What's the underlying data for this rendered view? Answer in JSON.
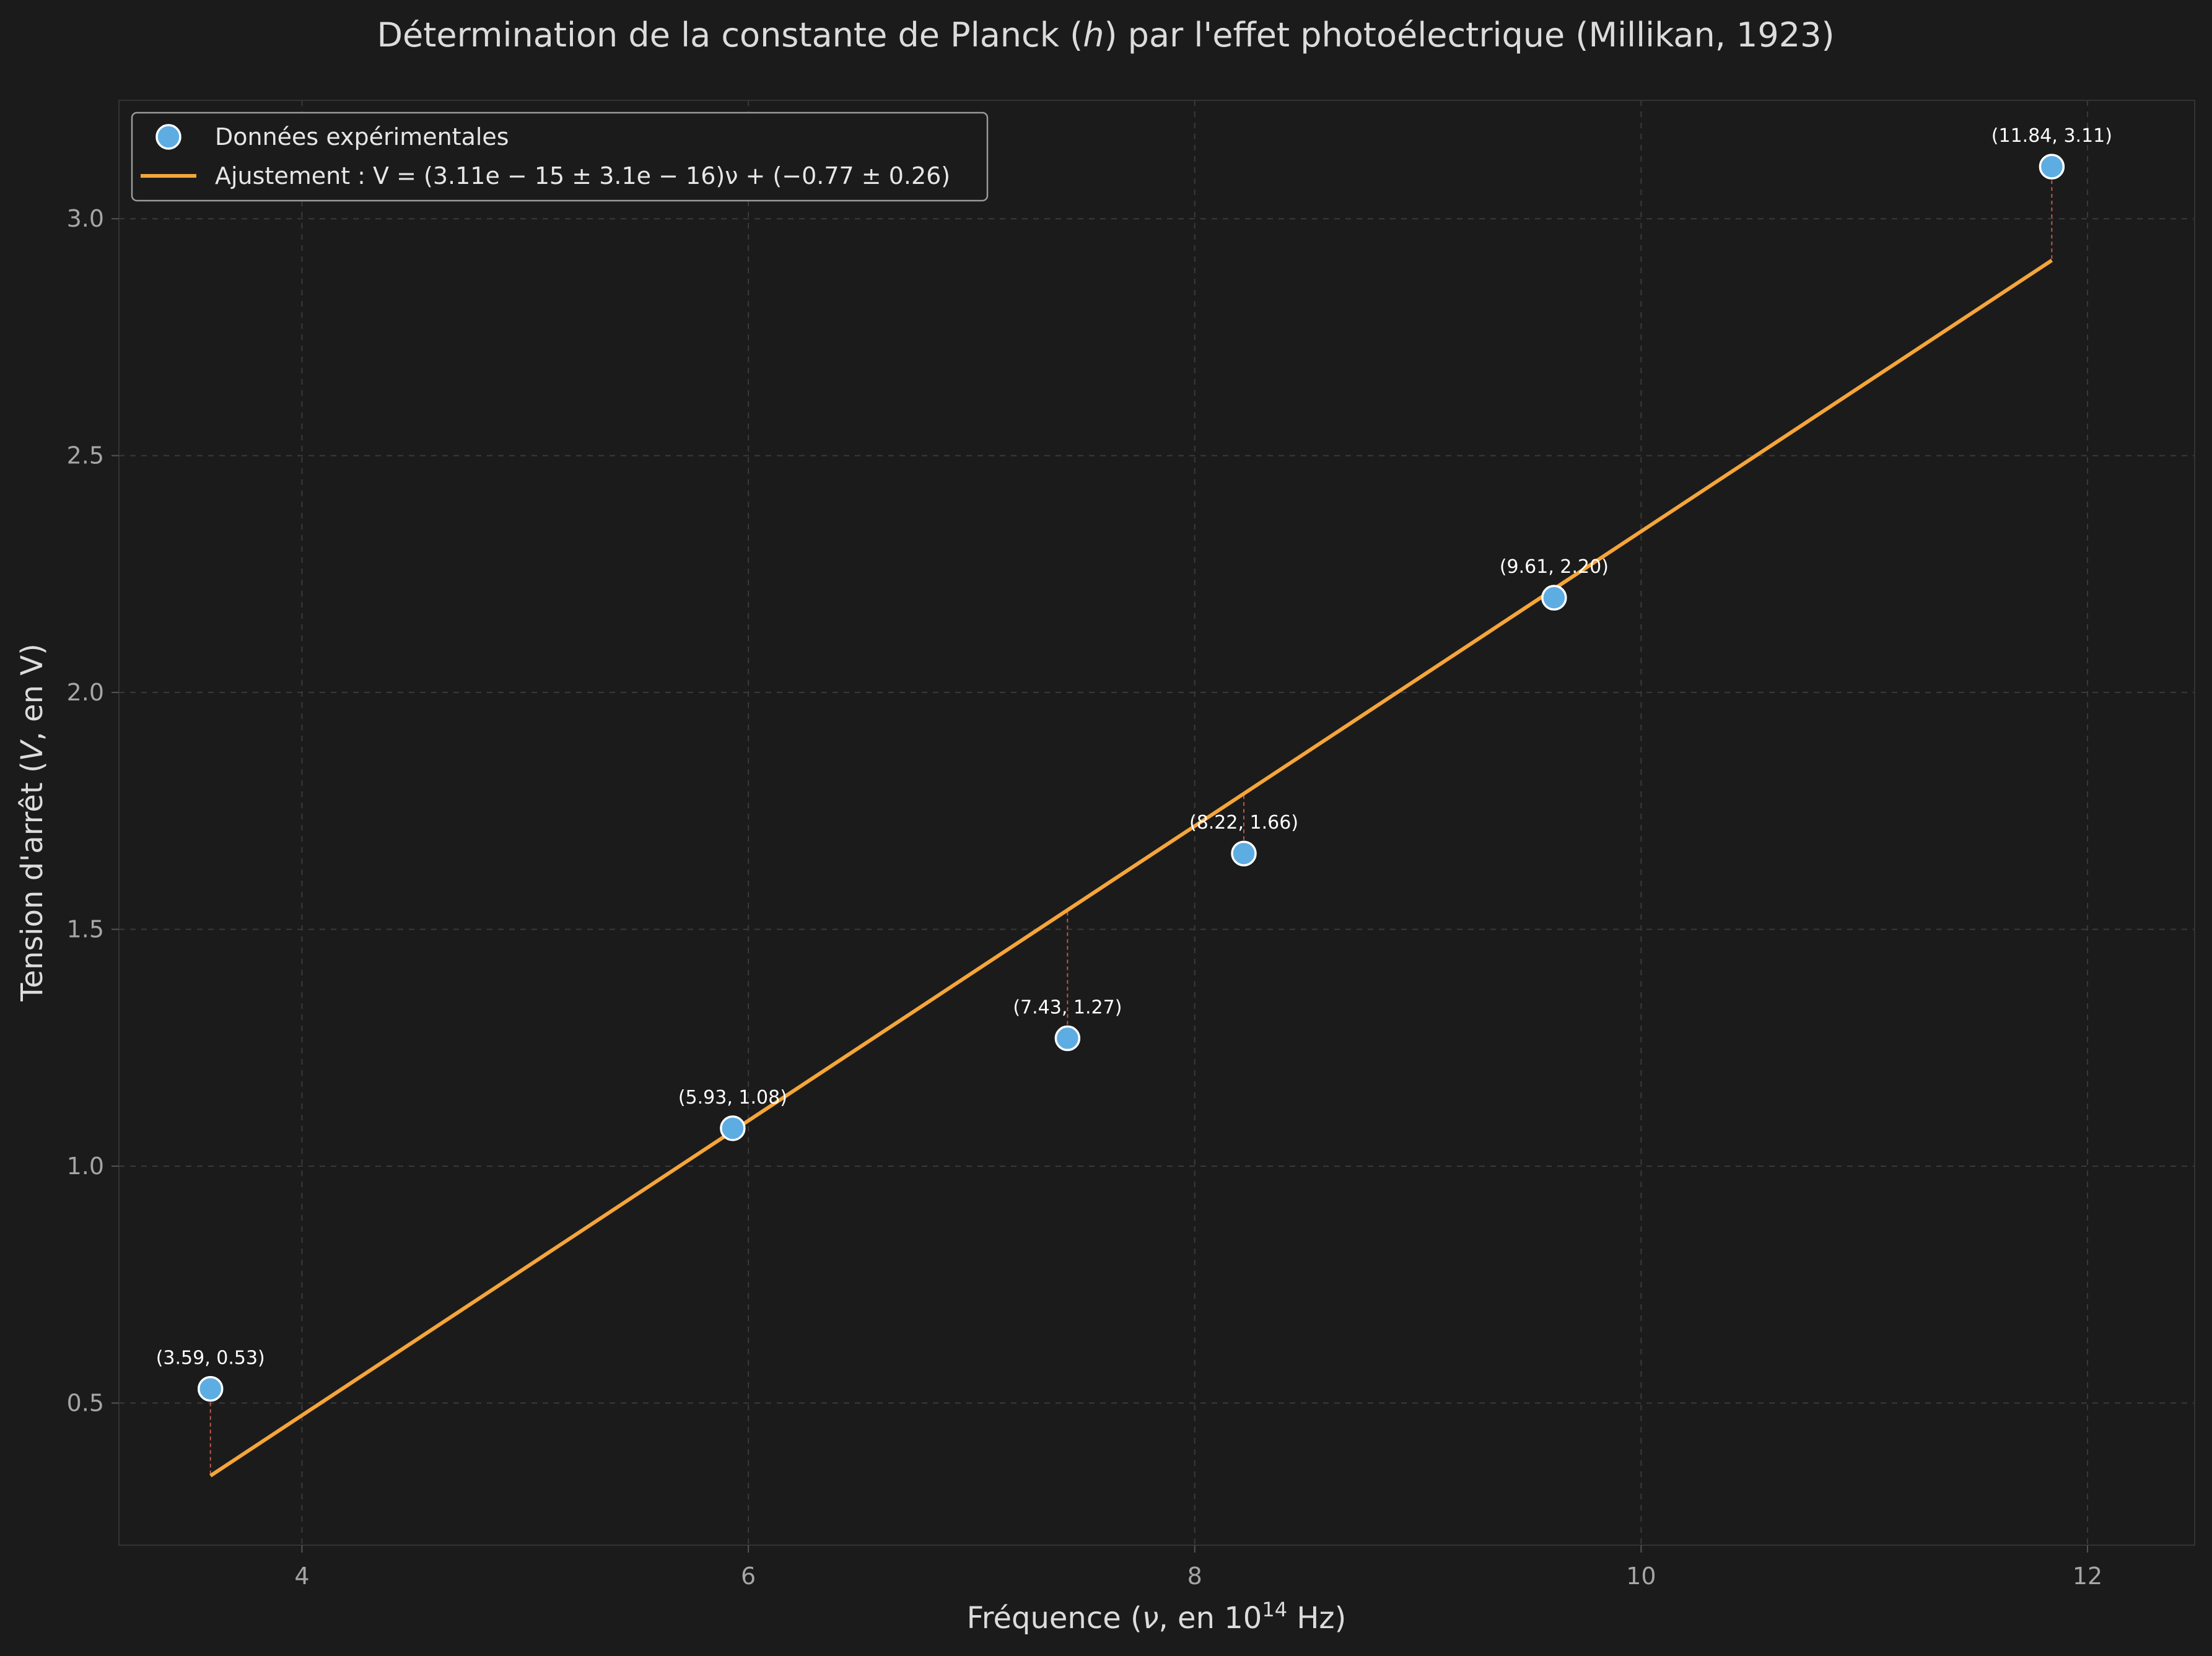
{
  "chart_data": {
    "type": "scatter",
    "title": "Détermination de la constante de Planck (h) par l'effet photoélectrique (Millikan, 1923)",
    "xlabel": "Fréquence (ν, en 10^14 Hz)",
    "ylabel": "Tension d'arrêt (V, en V)",
    "xlim": [
      3.18,
      12.48
    ],
    "ylim": [
      0.2,
      3.25
    ],
    "x_ticks": [
      4,
      6,
      8,
      10,
      12
    ],
    "x_tick_labels": [
      "4",
      "6",
      "8",
      "10",
      "12"
    ],
    "y_ticks": [
      0.5,
      1.0,
      1.5,
      2.0,
      2.5,
      3.0
    ],
    "y_tick_labels": [
      "0.5",
      "1.0",
      "1.5",
      "2.0",
      "2.5",
      "3.0"
    ],
    "grid": true,
    "legend_position": "top-left",
    "series": [
      {
        "name": "Données expérimentales",
        "kind": "scatter",
        "color": "#5dade2",
        "x": [
          3.59,
          5.93,
          7.43,
          8.22,
          9.61,
          11.84
        ],
        "y": [
          0.53,
          1.08,
          1.27,
          1.66,
          2.2,
          3.11
        ],
        "labels": [
          "(3.59, 0.53)",
          "(5.93, 1.08)",
          "(7.43, 1.27)",
          "(8.22, 1.66)",
          "(9.61, 2.20)",
          "(11.84, 3.11)"
        ]
      },
      {
        "name": "Ajustement : V = (3.11e − 15 ± 3.1e − 16)ν + (−0.77 ± 0.26)",
        "kind": "line",
        "color": "#f5a53a",
        "slope_per_1e14Hz": 0.311,
        "intercept": -0.77,
        "x_range": [
          3.59,
          11.84
        ]
      }
    ],
    "residual_color": "#c0574a"
  }
}
